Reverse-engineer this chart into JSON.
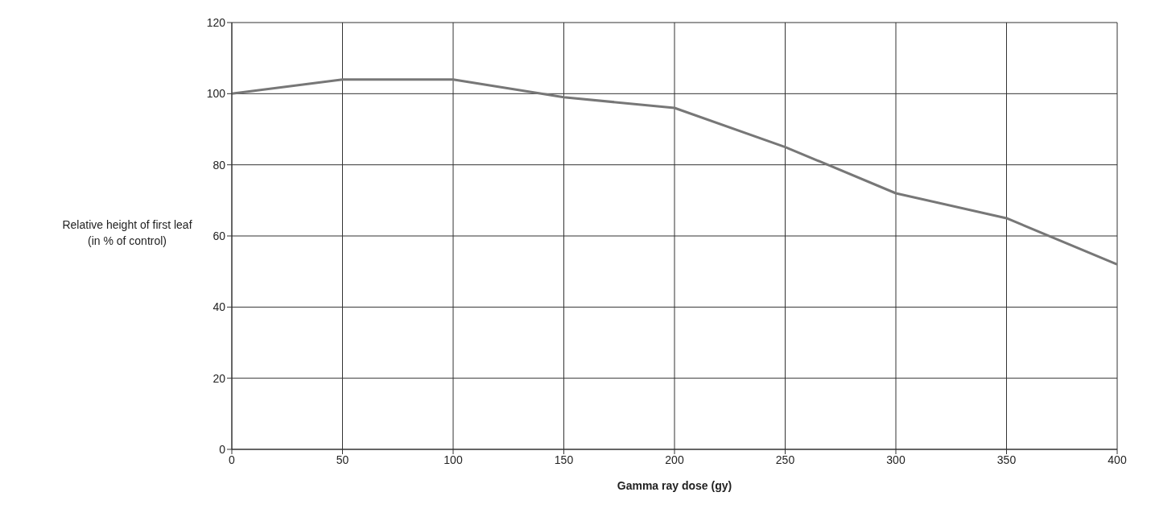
{
  "chart_data": {
    "type": "line",
    "xlabel": "Gamma ray dose (gy)",
    "ylabel": "Relative height of first leaf\n(in % of control)",
    "x": [
      0,
      50,
      100,
      150,
      200,
      250,
      300,
      350,
      400
    ],
    "series": [
      {
        "color": "#777777",
        "values": [
          100,
          104,
          104,
          99,
          96,
          85,
          72,
          65,
          52
        ]
      }
    ],
    "xlim": [
      0,
      400
    ],
    "xticks": [
      0,
      50,
      100,
      150,
      200,
      250,
      300,
      350,
      400
    ],
    "ylim": [
      0,
      120
    ],
    "yticks": [
      0,
      20,
      40,
      60,
      80,
      100,
      120
    ],
    "grid": true,
    "marker": "none",
    "line_style": "solid"
  }
}
